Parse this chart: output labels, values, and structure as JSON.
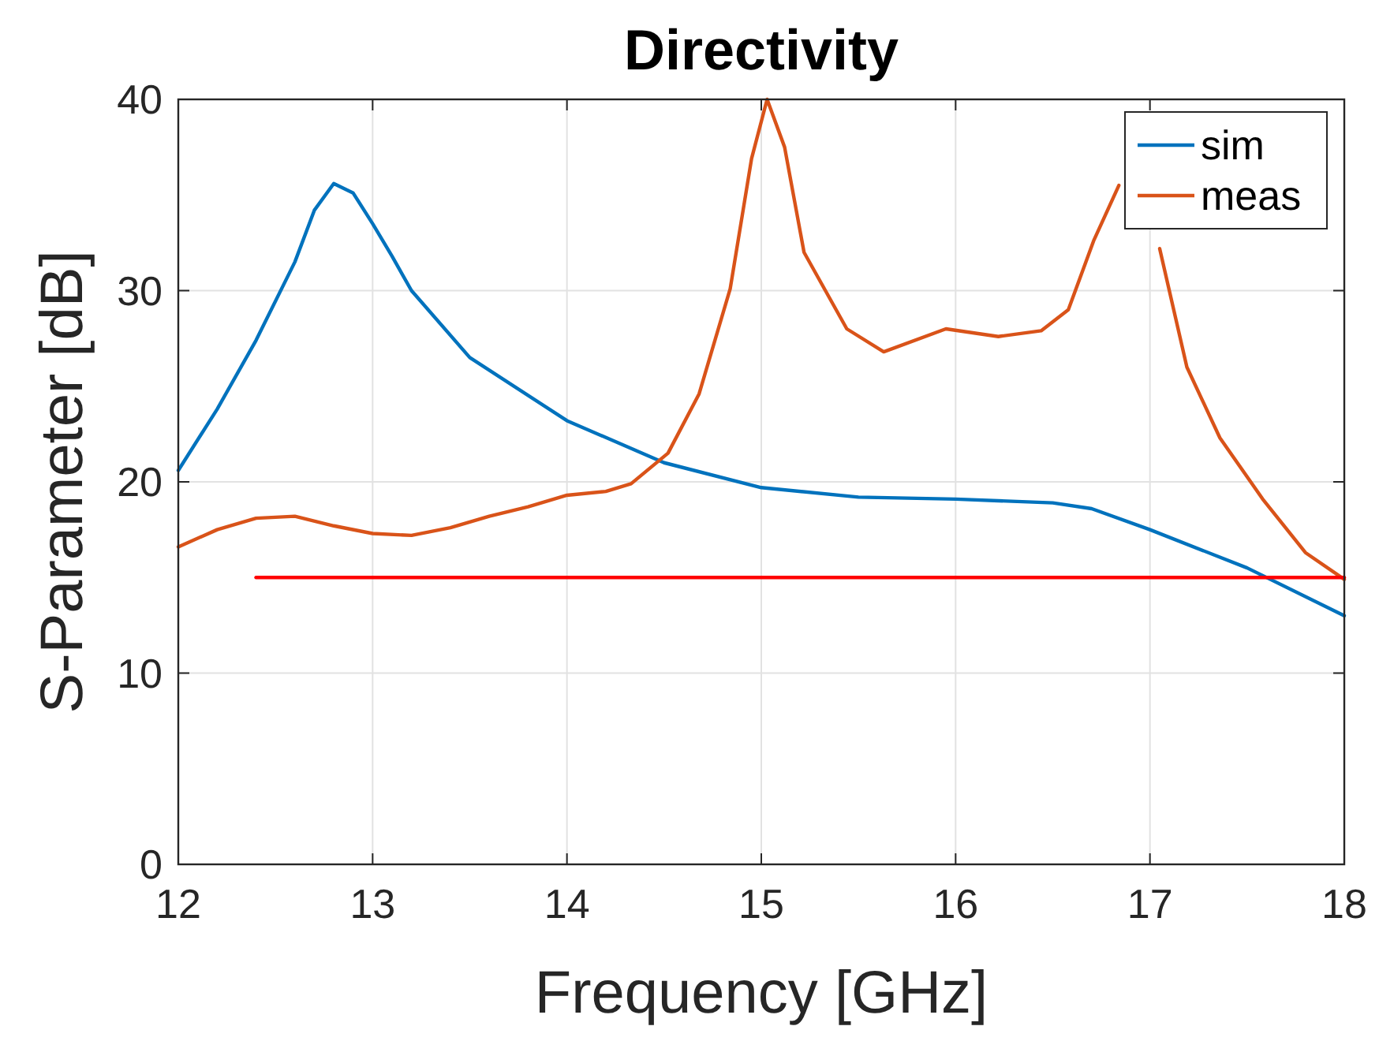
{
  "chart_data": {
    "type": "line",
    "title": "Directivity",
    "xlabel": "Frequency [GHz]",
    "ylabel": "S-Parameter [dB]",
    "xlim": [
      12,
      18
    ],
    "ylim": [
      0,
      40
    ],
    "xticks": [
      12,
      13,
      14,
      15,
      16,
      17,
      18
    ],
    "yticks": [
      0,
      10,
      20,
      30,
      40
    ],
    "grid": true,
    "legend": "top right",
    "line_style": "solid",
    "marker": "none",
    "series": [
      {
        "name": "sim",
        "color": "#0072bd",
        "x": [
          12,
          12.2,
          12.4,
          12.6,
          12.7,
          12.8,
          12.9,
          13,
          13.1,
          13.2,
          13.5,
          14,
          14.5,
          15,
          15.5,
          16,
          16.5,
          16.7,
          17,
          17.5,
          18
        ],
        "values": [
          20.6,
          23.8,
          27.4,
          31.5,
          34.2,
          35.6,
          35.1,
          33.5,
          31.8,
          30,
          26.5,
          23.2,
          21,
          19.7,
          19.2,
          19.1,
          18.9,
          18.6,
          17.5,
          15.5,
          13
        ]
      },
      {
        "name": "meas",
        "color": "#d95319",
        "x": [
          12,
          12.2,
          12.4,
          12.6,
          12.8,
          13,
          13.2,
          13.4,
          13.6,
          13.8,
          14,
          14.2,
          14.33,
          14.52,
          14.68,
          14.84,
          14.95,
          15.03,
          15.12,
          15.22,
          15.44,
          15.63,
          15.95,
          16.22,
          16.44,
          16.58,
          16.71,
          16.84,
          16.97,
          17.05,
          17.19,
          17.36,
          17.58,
          17.8,
          18
        ],
        "values": [
          16.6,
          17.5,
          18.1,
          18.2,
          17.7,
          17.3,
          17.2,
          17.6,
          18.2,
          18.7,
          19.3,
          19.5,
          19.9,
          21.5,
          24.6,
          30.1,
          36.9,
          40,
          37.5,
          32,
          28,
          26.8,
          28,
          27.6,
          27.9,
          29,
          32.6,
          35.5,
          null,
          32.2,
          26,
          22.3,
          19.1,
          16.3,
          14.9
        ]
      },
      {
        "color": "#ff0000",
        "x": [
          12.4,
          18
        ],
        "values": [
          15,
          15
        ]
      }
    ]
  }
}
